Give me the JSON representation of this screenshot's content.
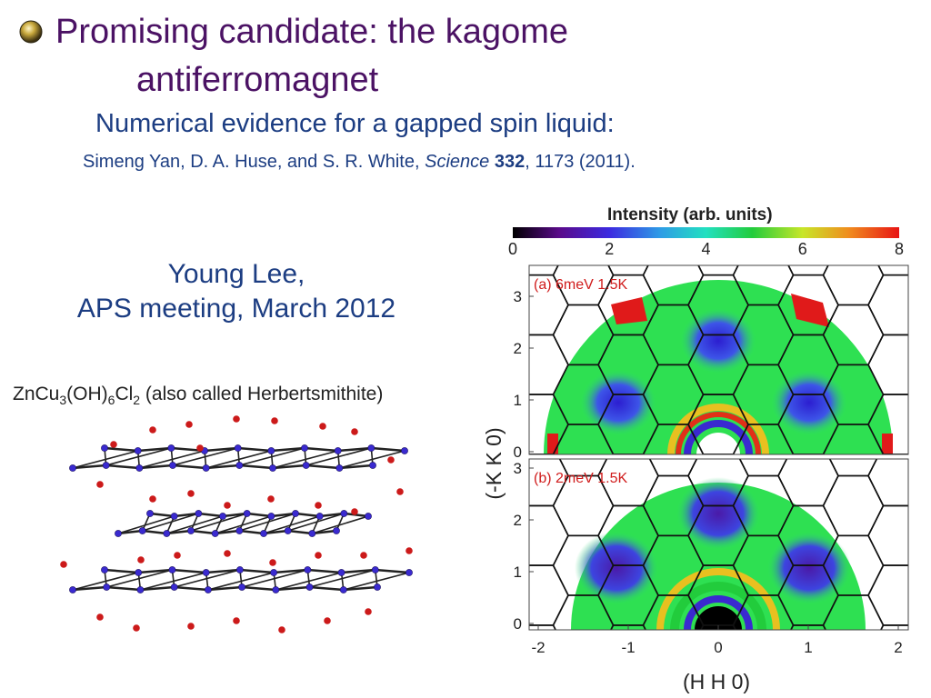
{
  "slide": {
    "title_line1": "Promising candidate: the kagome",
    "title_line2": "antiferromagnet",
    "subtitle": "Numerical evidence for a gapped spin liquid:",
    "citation": {
      "authors": "Simeng Yan, D. A. Huse, and S. R. White, ",
      "journal": "Science",
      "volume": "332",
      "rest": ", 1173 (2011)."
    },
    "talk_line1": "Young Lee,",
    "talk_line2": "APS meeting, March 2012"
  },
  "crystal": {
    "formula_zn": "ZnCu",
    "formula_sub3": "3",
    "formula_oh": "(OH)",
    "formula_sub6": "6",
    "formula_cl": "Cl",
    "formula_sub2": "2",
    "formula_rest": " (also called Herbertsmithite)",
    "colors": {
      "oxygen": "#cc1a1a",
      "copper": "#3a2ad0",
      "bond": "#222222"
    }
  },
  "figure": {
    "colorbar_title": "Intensity (arb. units)",
    "colorbar_ticks": [
      "0",
      "2",
      "4",
      "6",
      "8"
    ],
    "panel_a_label": "(a) 6meV 1.5K",
    "panel_b_label": "(b) 2meV 1.5K",
    "y_ticks": [
      "0",
      "1",
      "2",
      "3"
    ],
    "x_ticks": [
      "-2",
      "-1",
      "0",
      "1",
      "2"
    ],
    "y_label": "(-K K 0)",
    "x_label": "(H H 0)",
    "label_color": "#d01c1c"
  }
}
